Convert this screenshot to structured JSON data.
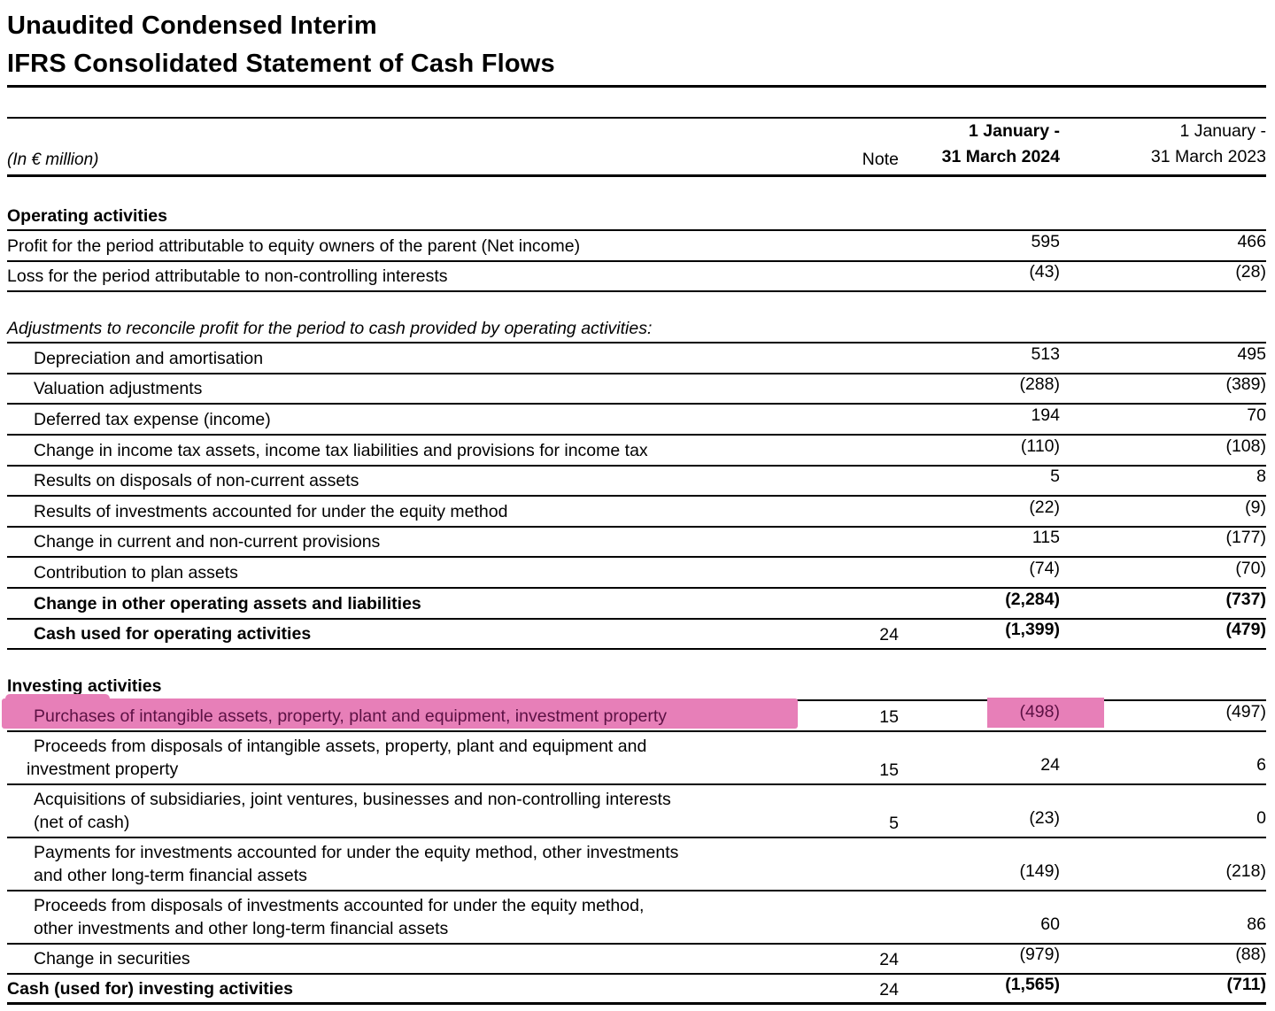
{
  "title": {
    "line1": "Unaudited Condensed Interim",
    "line2": "IFRS Consolidated Statement of Cash Flows"
  },
  "header": {
    "unit": "(In € million)",
    "note_label": "Note",
    "period_2024": {
      "line1": "1 January -",
      "line2": "31 March 2024"
    },
    "period_2023": {
      "line1": "1 January -",
      "line2": "31 March 2023"
    }
  },
  "sections": {
    "operating": "Operating activities",
    "adjustments": "Adjustments to reconcile profit for the period to cash provided by operating activities:",
    "investing": "Investing activities"
  },
  "rows": [
    {
      "label": "Profit for the period attributable to equity owners of the parent (Net income)",
      "note": "",
      "v2024": "595",
      "v2023": "466"
    },
    {
      "label": "Loss for the period attributable to non-controlling interests",
      "note": "",
      "v2024": "(43)",
      "v2023": "(28)"
    },
    {
      "label": "Depreciation and amortisation",
      "note": "",
      "v2024": "513",
      "v2023": "495"
    },
    {
      "label": "Valuation adjustments",
      "note": "",
      "v2024": "(288)",
      "v2023": "(389)"
    },
    {
      "label": "Deferred tax expense (income)",
      "note": "",
      "v2024": "194",
      "v2023": "70"
    },
    {
      "label": "Change in income tax assets, income tax liabilities and provisions for income tax",
      "note": "",
      "v2024": "(110)",
      "v2023": "(108)"
    },
    {
      "label": "Results on disposals of non-current assets",
      "note": "",
      "v2024": "5",
      "v2023": "8"
    },
    {
      "label": "Results of investments accounted for under the equity method",
      "note": "",
      "v2024": "(22)",
      "v2023": "(9)"
    },
    {
      "label": "Change in current and non-current provisions",
      "note": "",
      "v2024": "115",
      "v2023": "(177)"
    },
    {
      "label": "Contribution to plan assets",
      "note": "",
      "v2024": "(74)",
      "v2023": "(70)"
    },
    {
      "label": "Change in other operating assets and liabilities",
      "note": "",
      "v2024": "(2,284)",
      "v2023": "(737)"
    },
    {
      "label": "Cash used for operating activities",
      "note": "24",
      "v2024": "(1,399)",
      "v2023": "(479)"
    },
    {
      "label": "Purchases of intangible assets, property, plant and equipment, investment property",
      "note": "15",
      "v2024": "(498)",
      "v2023": "(497)"
    },
    {
      "label": "Proceeds from disposals of intangible assets, property, plant and equipment and",
      "label2": "investment property",
      "note": "15",
      "v2024": "24",
      "v2023": "6"
    },
    {
      "label": "Acquisitions of subsidiaries, joint ventures, businesses and non-controlling interests",
      "label2": "(net of cash)",
      "note": "5",
      "v2024": "(23)",
      "v2023": "0"
    },
    {
      "label": "Payments for investments accounted for under the equity method, other investments",
      "label2": "and other long-term financial assets",
      "note": "",
      "v2024": "(149)",
      "v2023": "(218)"
    },
    {
      "label": "Proceeds from disposals of investments accounted for under the equity method,",
      "label2": "other investments and other long-term financial assets",
      "note": "",
      "v2024": "60",
      "v2023": "86"
    },
    {
      "label": "Change in securities",
      "note": "24",
      "v2024": "(979)",
      "v2023": "(88)"
    },
    {
      "label": "Cash (used for) investing activities",
      "note": "24",
      "v2024": "(1,565)",
      "v2023": "(711)"
    }
  ],
  "highlight": {
    "marker_color": "#e77fb8",
    "marked_text_color": "#5c1144",
    "marked_row_label": "Purchases of intangible assets, property, plant and equipment, investment property",
    "marked_value": "(498)"
  }
}
